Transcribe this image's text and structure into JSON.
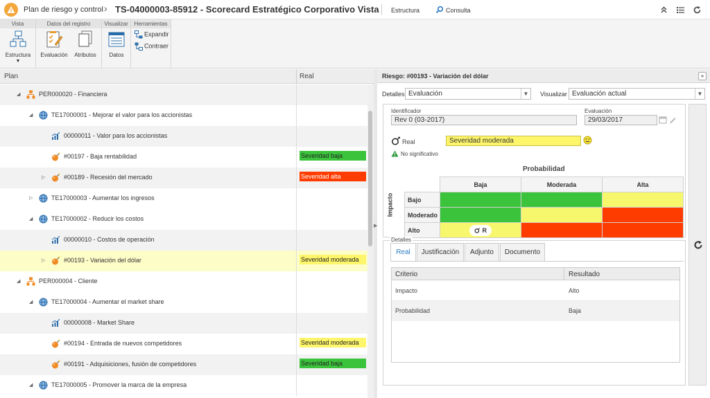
{
  "header": {
    "app_name": "Plan de riesgo y control",
    "separator": "›",
    "title": "TS-04000003-85912 - Scorecard Estratégico Corporativo Vista",
    "link_estructura": "Estructura",
    "link_consulta": "Consulta"
  },
  "ribbon": {
    "groups": [
      {
        "title": "Vista"
      },
      {
        "title": "Datos del registro"
      },
      {
        "title": "Visualizar"
      },
      {
        "title": "Herramientas"
      }
    ],
    "buttons": {
      "estructura": "Estructura",
      "evaluacion": "Evaluación",
      "atributos": "Atributos",
      "datos": "Datos",
      "expandir": "Expandir",
      "contraer": "Contraer"
    }
  },
  "tree": {
    "col_plan": "Plan",
    "col_real": "Real",
    "rows": [
      {
        "label": "PER000020 - Financiera",
        "icon": "perspective-icon",
        "badge": "",
        "badge_color": ""
      },
      {
        "label": "TE17000001 - Mejorar el valor para los accionistas",
        "icon": "globe-icon",
        "badge": "",
        "badge_color": ""
      },
      {
        "label": "00000011 - Valor para los accionistas",
        "icon": "indicator-chart-icon",
        "badge": "",
        "badge_color": ""
      },
      {
        "label": "#00197 - Baja rentabilidad",
        "icon": "risk-bomb-icon",
        "badge": "Severidad baja",
        "badge_color": "#3cc33c"
      },
      {
        "label": "#00189 - Recesión del mercado",
        "icon": "risk-bomb-icon",
        "badge": "Severidad alta",
        "badge_color": "#ff3c00"
      },
      {
        "label": "TE17000003 - Aumentar los ingresos",
        "icon": "globe-icon",
        "badge": "",
        "badge_color": ""
      },
      {
        "label": "TE17000002 - Reducir los costos",
        "icon": "globe-icon",
        "badge": "",
        "badge_color": ""
      },
      {
        "label": "00000010 - Costos de operación",
        "icon": "indicator-chart-icon",
        "badge": "",
        "badge_color": ""
      },
      {
        "label": "#00193 - Variación del dólar",
        "icon": "risk-bomb-icon",
        "badge": "Severidad moderada",
        "badge_color": "#fdf56a"
      },
      {
        "label": "PER000004 - Cliente",
        "icon": "perspective-icon",
        "badge": "",
        "badge_color": ""
      },
      {
        "label": "TE17000004 - Aumentar el market share",
        "icon": "globe-icon",
        "badge": "",
        "badge_color": ""
      },
      {
        "label": "00000008 - Market Share",
        "icon": "indicator-chart-icon",
        "badge": "",
        "badge_color": ""
      },
      {
        "label": "#00194 - Entrada de nuevos competidores",
        "icon": "risk-bomb-icon",
        "badge": "Severidad moderada",
        "badge_color": "#fdf56a"
      },
      {
        "label": "#00191 - Adquisiciones, fusión de competidores",
        "icon": "risk-bomb-icon",
        "badge": "Severidad baja",
        "badge_color": "#3cc33c"
      },
      {
        "label": "TE17000005 - Promover la marca de la empresa",
        "icon": "globe-icon",
        "badge": "",
        "badge_color": ""
      }
    ]
  },
  "detail": {
    "title": "Riesgo: #00193 - Variación del dólar",
    "detalles_label": "Detalles",
    "detalles_value": "Evaluación",
    "visualizar_label": "Visualizar",
    "visualizar_value": "Evaluación actual",
    "identificador_label": "Identificador",
    "identificador_value": "Rev 0 (03-2017)",
    "evaluacion_label": "Evaluación",
    "evaluacion_value": "29/03/2017",
    "real_label": "Real",
    "real_value": "Severidad moderada",
    "significance": "No significativo",
    "matrix": {
      "prob_title": "Probabilidad",
      "impact_title": "Impacto",
      "cols": [
        "Baja",
        "Moderada",
        "Alta"
      ],
      "rows": [
        "Bajo",
        "Moderado",
        "Alto"
      ],
      "marker": "R"
    },
    "detalles_group": "Detalles",
    "tabs": [
      "Real",
      "Justificación",
      "Adjunto",
      "Documento"
    ],
    "table": {
      "col_criterio": "Criterio",
      "col_resultado": "Resultado",
      "rows": [
        {
          "criterio": "Impacto",
          "resultado": "Alto"
        },
        {
          "criterio": "Probabilidad",
          "resultado": "Baja"
        }
      ]
    }
  }
}
